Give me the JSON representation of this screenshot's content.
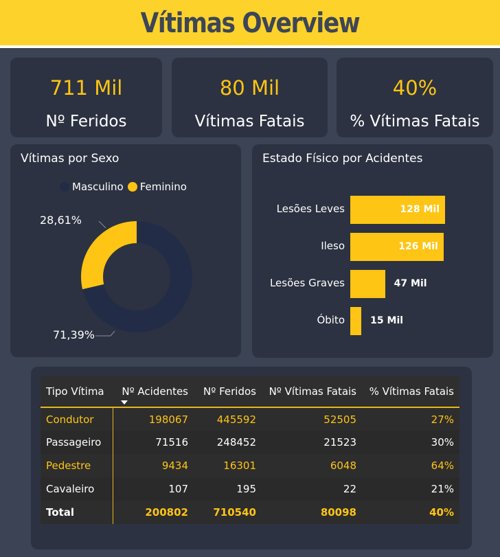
{
  "header": {
    "title": "Vítimas Overview"
  },
  "kpis": [
    {
      "value": "711 Mil",
      "label": "Nº Feridos"
    },
    {
      "value": "80 Mil",
      "label": "Vítimas Fatais"
    },
    {
      "value": "40%",
      "label": "% Vítimas Fatais"
    }
  ],
  "donut": {
    "title": "Vítimas por Sexo",
    "legend": [
      {
        "name": "Masculino",
        "color": "#232c47"
      },
      {
        "name": "Feminino",
        "color": "#fec514"
      }
    ],
    "labels": {
      "feminino": "28,61%",
      "masculino": "71,39%"
    }
  },
  "bars": {
    "title": "Estado Físico por Acidentes",
    "data_labels": [
      "128 Mil",
      "126 Mil",
      "47 Mil",
      "15 Mil"
    ]
  },
  "chart_data": [
    {
      "type": "pie",
      "title": "Vítimas por Sexo",
      "categories": [
        "Masculino",
        "Feminino"
      ],
      "values": [
        71.39,
        28.61
      ],
      "colors": [
        "#232c47",
        "#fec514"
      ],
      "legend": "top"
    },
    {
      "type": "bar",
      "orientation": "horizontal",
      "title": "Estado Físico por Acidentes",
      "categories": [
        "Lesões Leves",
        "Ileso",
        "Lesões Graves",
        "Óbito"
      ],
      "values": [
        128,
        126,
        47,
        15
      ],
      "unit": "Mil"
    }
  ],
  "table": {
    "headers": [
      "Tipo Vítima",
      "Nº Acidentes",
      "Nº Feridos",
      "Nº Vítimas Fatais",
      "% Vítimas Fatais"
    ],
    "rows": [
      [
        "Condutor",
        "198067",
        "445592",
        "52505",
        "27%"
      ],
      [
        "Passageiro",
        "71516",
        "248452",
        "21523",
        "30%"
      ],
      [
        "Pedestre",
        "9434",
        "16301",
        "6048",
        "64%"
      ],
      [
        "Cavaleiro",
        "107",
        "195",
        "22",
        "21%"
      ]
    ],
    "total": [
      "Total",
      "200802",
      "710540",
      "80098",
      "40%"
    ]
  },
  "colors": {
    "accent": "#fec514",
    "banner": "#fdd22b",
    "background": "#3b4354",
    "card": "#2c3241"
  }
}
